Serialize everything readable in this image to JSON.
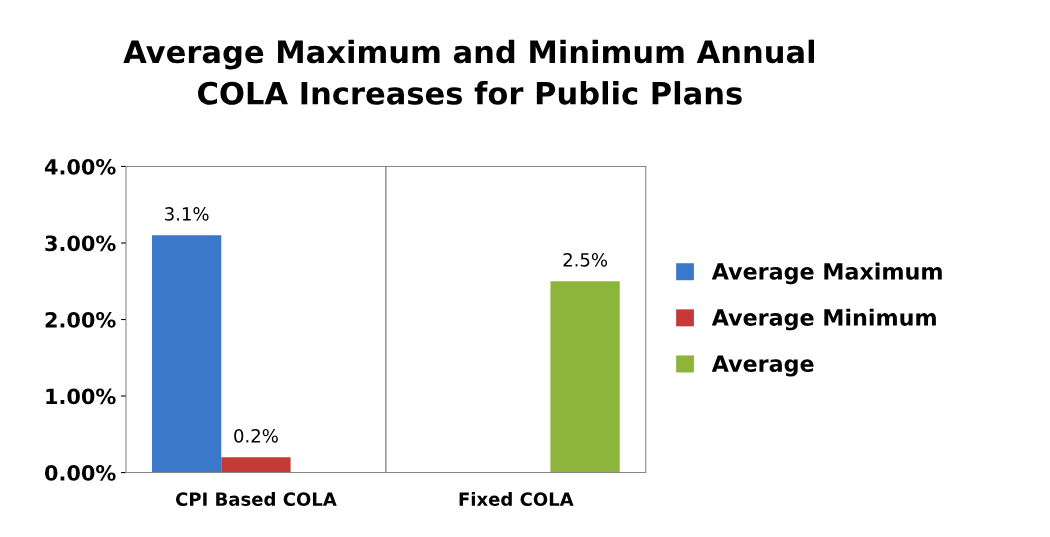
{
  "chart_data": {
    "type": "bar",
    "title": "Average Maximum and Minimum Annual\nCOLA Increases for Public Plans",
    "categories": [
      "CPI Based COLA",
      "Fixed COLA"
    ],
    "series": [
      {
        "name": "Average Maximum",
        "color": "#3b78c9",
        "values": [
          3.1,
          null
        ],
        "value_labels": [
          "3.1%",
          null
        ]
      },
      {
        "name": "Average Minimum",
        "color": "#c43a36",
        "values": [
          0.2,
          null
        ],
        "value_labels": [
          "0.2%",
          null
        ]
      },
      {
        "name": "Average",
        "color": "#8db53c",
        "values": [
          null,
          2.5
        ],
        "value_labels": [
          null,
          "2.5%"
        ]
      }
    ],
    "ylim": [
      0,
      4
    ],
    "yticks": [
      {
        "value": 0,
        "label": "0.00%"
      },
      {
        "value": 1,
        "label": "1.00%"
      },
      {
        "value": 2,
        "label": "2.00%"
      },
      {
        "value": 3,
        "label": "3.00%"
      },
      {
        "value": 4,
        "label": "4.00%"
      }
    ],
    "grid": "x",
    "legend": "right"
  }
}
